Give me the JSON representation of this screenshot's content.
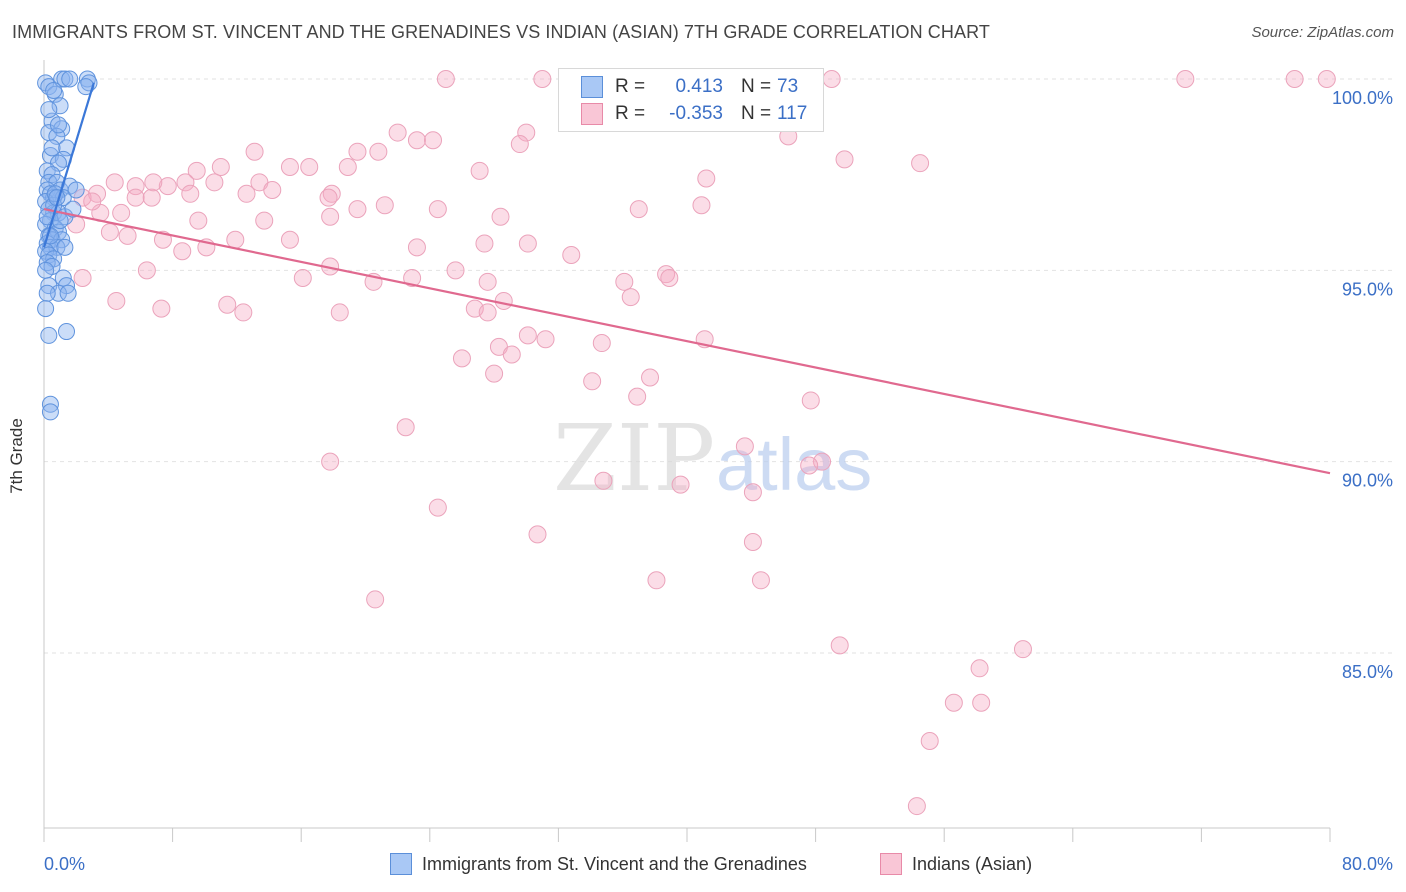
{
  "title": "IMMIGRANTS FROM ST. VINCENT AND THE GRENADINES VS INDIAN (ASIAN) 7TH GRADE CORRELATION CHART",
  "source": "Source: ZipAtlas.com",
  "watermark": {
    "zip": "ZIP",
    "atlas": "atlas"
  },
  "legend_top": {
    "r_label": "R =",
    "n_label": "N =",
    "rows": [
      {
        "r": "0.413",
        "n": "73",
        "color": "#a9c8f5",
        "border": "#5b8fd9"
      },
      {
        "r": "-0.353",
        "n": "117",
        "color": "#f9c6d6",
        "border": "#e88aa8"
      }
    ]
  },
  "colors": {
    "blue": "#3b78d8",
    "blue_fill": "rgba(140,180,240,0.45)",
    "pink": "#e0698f",
    "pink_fill": "rgba(245,170,195,0.40)",
    "pink_stroke": "#eba3bb",
    "blue_stroke": "#5f93dd",
    "tick_text": "#3b6fc6"
  },
  "chart_data": {
    "type": "scatter",
    "title": "IMMIGRANTS FROM ST. VINCENT AND THE GRENADINES VS INDIAN (ASIAN) 7TH GRADE CORRELATION CHART",
    "xlabel": "",
    "ylabel": "7th Grade",
    "xlim": [
      0,
      80
    ],
    "ylim": [
      80.5,
      100.5
    ],
    "x_tick_labels": [
      "0.0%",
      "80.0%"
    ],
    "y_ticks": [
      85,
      90,
      95,
      100
    ],
    "y_tick_labels": [
      "85.0%",
      "90.0%",
      "95.0%",
      "100.0%"
    ],
    "grid": true,
    "series": [
      {
        "name": "Immigrants from St. Vincent and the Grenadines",
        "color": "#3b78d8",
        "trend": {
          "x": [
            0.0,
            3.1
          ],
          "y": [
            95.6,
            99.9
          ]
        },
        "points": [
          [
            0.1,
            99.9
          ],
          [
            0.3,
            99.8
          ],
          [
            1.1,
            100.0
          ],
          [
            1.3,
            100.0
          ],
          [
            1.6,
            100.0
          ],
          [
            2.7,
            100.0
          ],
          [
            2.8,
            99.9
          ],
          [
            2.6,
            99.8
          ],
          [
            0.7,
            99.6
          ],
          [
            1.0,
            99.3
          ],
          [
            0.5,
            98.9
          ],
          [
            1.1,
            98.7
          ],
          [
            0.3,
            98.6
          ],
          [
            0.8,
            98.5
          ],
          [
            1.4,
            98.2
          ],
          [
            0.4,
            98.0
          ],
          [
            1.2,
            97.9
          ],
          [
            0.9,
            97.8
          ],
          [
            0.2,
            97.6
          ],
          [
            0.5,
            97.5
          ],
          [
            0.3,
            97.3
          ],
          [
            0.8,
            97.3
          ],
          [
            1.0,
            97.1
          ],
          [
            1.6,
            97.2
          ],
          [
            0.2,
            97.1
          ],
          [
            0.4,
            97.0
          ],
          [
            0.6,
            96.9
          ],
          [
            1.2,
            96.9
          ],
          [
            0.1,
            96.8
          ],
          [
            0.3,
            96.6
          ],
          [
            0.6,
            96.5
          ],
          [
            0.9,
            96.5
          ],
          [
            1.3,
            96.4
          ],
          [
            0.4,
            96.3
          ],
          [
            0.1,
            96.2
          ],
          [
            0.7,
            96.1
          ],
          [
            0.9,
            96.0
          ],
          [
            0.3,
            95.9
          ],
          [
            0.5,
            95.8
          ],
          [
            1.1,
            95.8
          ],
          [
            0.2,
            95.7
          ],
          [
            0.4,
            95.6
          ],
          [
            0.8,
            95.6
          ],
          [
            1.3,
            95.6
          ],
          [
            0.1,
            95.5
          ],
          [
            0.3,
            95.4
          ],
          [
            0.6,
            95.3
          ],
          [
            0.2,
            95.2
          ],
          [
            0.5,
            95.1
          ],
          [
            0.1,
            95.0
          ],
          [
            1.2,
            94.8
          ],
          [
            1.4,
            94.6
          ],
          [
            0.3,
            94.6
          ],
          [
            0.9,
            94.4
          ],
          [
            1.5,
            94.4
          ],
          [
            0.2,
            94.4
          ],
          [
            0.1,
            94.0
          ],
          [
            1.4,
            93.4
          ],
          [
            0.3,
            93.3
          ],
          [
            0.4,
            91.5
          ],
          [
            0.4,
            91.3
          ],
          [
            0.6,
            96.7
          ],
          [
            0.2,
            96.4
          ],
          [
            1.0,
            96.3
          ],
          [
            0.7,
            97.0
          ],
          [
            0.5,
            98.2
          ],
          [
            0.9,
            98.8
          ],
          [
            0.3,
            99.2
          ],
          [
            0.6,
            99.7
          ],
          [
            1.8,
            96.6
          ],
          [
            2.0,
            97.1
          ],
          [
            0.4,
            95.9
          ],
          [
            0.8,
            96.9
          ]
        ]
      },
      {
        "name": "Indians (Asian)",
        "color": "#e0698f",
        "trend": {
          "x": [
            0.0,
            80.0
          ],
          "y": [
            96.6,
            89.7
          ]
        },
        "points": [
          [
            25,
            100.0
          ],
          [
            31,
            100.0
          ],
          [
            49,
            100.0
          ],
          [
            71,
            100.0
          ],
          [
            77.8,
            100.0
          ],
          [
            79.8,
            100.0
          ],
          [
            22,
            98.6
          ],
          [
            23.2,
            98.4
          ],
          [
            24.2,
            98.4
          ],
          [
            30,
            98.6
          ],
          [
            29.6,
            98.3
          ],
          [
            13.1,
            98.1
          ],
          [
            19.5,
            98.1
          ],
          [
            20.8,
            98.1
          ],
          [
            27.1,
            97.6
          ],
          [
            49.8,
            97.9
          ],
          [
            54.5,
            97.8
          ],
          [
            9.5,
            97.6
          ],
          [
            11,
            97.7
          ],
          [
            13.4,
            97.3
          ],
          [
            16.5,
            97.7
          ],
          [
            14.2,
            97.1
          ],
          [
            10.6,
            97.3
          ],
          [
            8.8,
            97.3
          ],
          [
            17.9,
            97.0
          ],
          [
            17.7,
            96.9
          ],
          [
            19.5,
            96.6
          ],
          [
            21.2,
            96.7
          ],
          [
            4.4,
            97.3
          ],
          [
            5.7,
            97.2
          ],
          [
            7.7,
            97.2
          ],
          [
            9.1,
            97.0
          ],
          [
            12.6,
            97.0
          ],
          [
            24.5,
            96.6
          ],
          [
            2.4,
            96.9
          ],
          [
            3.3,
            97.0
          ],
          [
            5.7,
            96.9
          ],
          [
            3.5,
            96.5
          ],
          [
            6.7,
            96.9
          ],
          [
            41.2,
            97.4
          ],
          [
            40.9,
            96.7
          ],
          [
            37,
            96.6
          ],
          [
            28.4,
            96.4
          ],
          [
            9.6,
            96.3
          ],
          [
            13.7,
            96.3
          ],
          [
            17.8,
            96.4
          ],
          [
            2.0,
            96.2
          ],
          [
            4.1,
            96.0
          ],
          [
            5.2,
            95.9
          ],
          [
            7.4,
            95.8
          ],
          [
            11.9,
            95.8
          ],
          [
            15.3,
            95.8
          ],
          [
            27.4,
            95.7
          ],
          [
            30.1,
            95.7
          ],
          [
            10.1,
            95.6
          ],
          [
            8.6,
            95.5
          ],
          [
            32.8,
            95.4
          ],
          [
            23.2,
            95.6
          ],
          [
            6.4,
            95.0
          ],
          [
            17.8,
            95.1
          ],
          [
            25.6,
            95.0
          ],
          [
            22.9,
            94.8
          ],
          [
            36.1,
            94.7
          ],
          [
            38.7,
            94.9
          ],
          [
            38.9,
            94.8
          ],
          [
            20.5,
            94.7
          ],
          [
            27.6,
            94.7
          ],
          [
            2.4,
            94.8
          ],
          [
            16.1,
            94.8
          ],
          [
            28.6,
            94.2
          ],
          [
            36.5,
            94.3
          ],
          [
            4.5,
            94.2
          ],
          [
            11.4,
            94.1
          ],
          [
            7.3,
            94.0
          ],
          [
            12.4,
            93.9
          ],
          [
            18.4,
            93.9
          ],
          [
            26.8,
            94.0
          ],
          [
            27.6,
            93.9
          ],
          [
            30.1,
            93.3
          ],
          [
            31.2,
            93.2
          ],
          [
            28.3,
            93.0
          ],
          [
            34.7,
            93.1
          ],
          [
            29.1,
            92.8
          ],
          [
            26.0,
            92.7
          ],
          [
            34.1,
            92.1
          ],
          [
            28.0,
            92.3
          ],
          [
            37.7,
            92.2
          ],
          [
            41.1,
            93.2
          ],
          [
            36.9,
            91.7
          ],
          [
            47.7,
            91.6
          ],
          [
            22.5,
            90.9
          ],
          [
            43.6,
            90.4
          ],
          [
            48.4,
            90.0
          ],
          [
            47.6,
            89.9
          ],
          [
            17.8,
            90.0
          ],
          [
            34.8,
            89.5
          ],
          [
            39.6,
            89.4
          ],
          [
            44.1,
            89.2
          ],
          [
            24.5,
            88.8
          ],
          [
            30.7,
            88.1
          ],
          [
            44.1,
            87.9
          ],
          [
            38.1,
            86.9
          ],
          [
            44.6,
            86.9
          ],
          [
            20.6,
            86.4
          ],
          [
            49.5,
            85.2
          ],
          [
            60.9,
            85.1
          ],
          [
            58.2,
            84.6
          ],
          [
            56.6,
            83.7
          ],
          [
            58.3,
            83.7
          ],
          [
            55.1,
            82.7
          ],
          [
            54.3,
            81.0
          ],
          [
            4.8,
            96.5
          ],
          [
            3.0,
            96.8
          ],
          [
            6.8,
            97.3
          ],
          [
            15.3,
            97.7
          ],
          [
            18.9,
            97.7
          ],
          [
            46.3,
            98.5
          ]
        ]
      }
    ]
  },
  "x_axis_labels": {
    "left": "0.0%",
    "right": "80.0%"
  },
  "legend_bottom": [
    {
      "label": "Immigrants from St. Vincent and the Grenadines",
      "color": "#a9c8f5",
      "border": "#5b8fd9"
    },
    {
      "label": "Indians (Asian)",
      "color": "#f9c6d6",
      "border": "#e88aa8"
    }
  ]
}
